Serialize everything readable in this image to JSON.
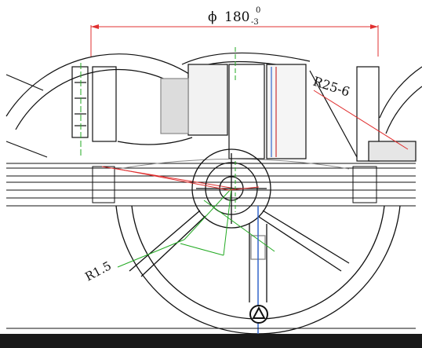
{
  "dimensions": {
    "diameter": {
      "symbol": "ϕ",
      "value": "180",
      "upper_tol": "0",
      "lower_tol": "-3"
    },
    "radius_right": "R25-6",
    "radius_left": "R1.5"
  },
  "colors": {
    "dimension_line": "#e03030",
    "center_line": "#22aa22",
    "outline": "#111111",
    "accent_blue": "#3366cc"
  },
  "icons": {
    "datum_marker": "triangle-in-circle-icon"
  }
}
